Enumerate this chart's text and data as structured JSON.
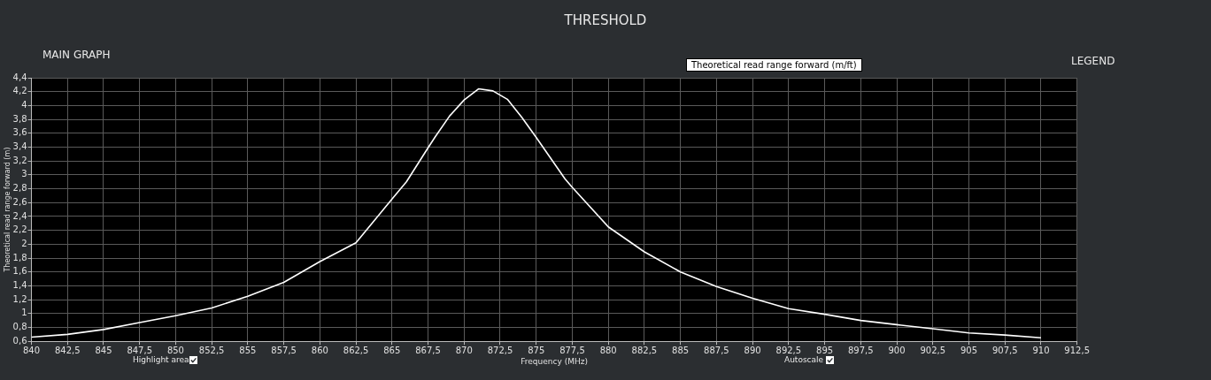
{
  "chart_data": {
    "type": "line",
    "title": "THRESHOLD",
    "subtitle": "MAIN GRAPH",
    "xlabel": "Frequency (MHz)",
    "ylabel": "Theoretical read range forward (m)",
    "annotations": [
      "Theoretical read range forward (m/ft)",
      "LEGEND",
      "Highlight area",
      "Autoscale"
    ],
    "x": [
      840,
      842.5,
      845,
      847.5,
      850,
      852.5,
      855,
      857.5,
      860,
      862.5,
      865,
      866,
      867.5,
      868,
      869,
      870,
      871,
      872,
      873,
      874,
      875,
      877,
      877.5,
      880,
      882.5,
      885,
      887.5,
      890,
      892.5,
      895,
      897.5,
      900,
      902.5,
      905,
      907.5,
      910
    ],
    "series": [
      {
        "color": "#ffffff",
        "values": [
          0.66,
          0.7,
          0.77,
          0.87,
          0.97,
          1.08,
          1.25,
          1.45,
          1.75,
          2.02,
          2.65,
          2.9,
          3.39,
          3.55,
          3.85,
          4.08,
          4.24,
          4.21,
          4.09,
          3.83,
          3.54,
          2.94,
          2.82,
          2.25,
          1.89,
          1.6,
          1.39,
          1.22,
          1.07,
          0.99,
          0.9,
          0.84,
          0.78,
          0.72,
          0.69,
          0.65
        ]
      }
    ],
    "xlim": [
      840,
      912.5
    ],
    "ylim": [
      0.6,
      4.4
    ],
    "xticks": [
      840,
      {
        "value": 842.5,
        "label": "842,5"
      },
      845,
      {
        "value": 847.5,
        "label": "847,5"
      },
      850,
      {
        "value": 852.5,
        "label": "852,5"
      },
      855,
      {
        "value": 857.5,
        "label": "857,5"
      },
      860,
      {
        "value": 862.5,
        "label": "862,5"
      },
      865,
      {
        "value": 867.5,
        "label": "867,5"
      },
      870,
      {
        "value": 872.5,
        "label": "872,5"
      },
      875,
      {
        "value": 877.5,
        "label": "877,5"
      },
      880,
      {
        "value": 882.5,
        "label": "882,5"
      },
      885,
      {
        "value": 887.5,
        "label": "887,5"
      },
      890,
      {
        "value": 892.5,
        "label": "892,5"
      },
      895,
      {
        "value": 897.5,
        "label": "897,5"
      },
      900,
      {
        "value": 902.5,
        "label": "902,5"
      },
      905,
      {
        "value": 907.5,
        "label": "907,5"
      },
      910,
      {
        "value": 912.5,
        "label": "912,5"
      }
    ],
    "yticks": [
      {
        "value": 0.6,
        "label": "0,6"
      },
      {
        "value": 0.8,
        "label": "0,8"
      },
      1,
      {
        "value": 1.2,
        "label": "1,2"
      },
      {
        "value": 1.4,
        "label": "1,4"
      },
      {
        "value": 1.6,
        "label": "1,6"
      },
      {
        "value": 1.8,
        "label": "1,8"
      },
      2,
      {
        "value": 2.2,
        "label": "2,2"
      },
      {
        "value": 2.4,
        "label": "2,4"
      },
      {
        "value": 2.6,
        "label": "2,6"
      },
      {
        "value": 2.8,
        "label": "2,8"
      },
      3,
      {
        "value": 3.2,
        "label": "3,2"
      },
      {
        "value": 3.4,
        "label": "3,4"
      },
      {
        "value": 3.6,
        "label": "3,6"
      },
      {
        "value": 3.8,
        "label": "3,8"
      },
      4,
      {
        "value": 4.2,
        "label": "4,2"
      },
      {
        "value": 4.4,
        "label": "4,4"
      }
    ],
    "grid": true,
    "marker": "none",
    "line_style": "solid"
  }
}
